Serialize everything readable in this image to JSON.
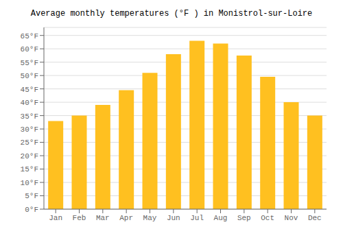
{
  "chart_data": {
    "type": "bar",
    "title": "Average monthly temperatures (°F ) in Monistrol-sur-Loire",
    "categories": [
      "Jan",
      "Feb",
      "Mar",
      "Apr",
      "May",
      "Jun",
      "Jul",
      "Aug",
      "Sep",
      "Oct",
      "Nov",
      "Dec"
    ],
    "values": [
      33,
      35,
      39,
      44.5,
      51,
      58,
      63,
      62,
      57.5,
      49.5,
      40,
      35
    ],
    "color": "#FFC020",
    "ylim": [
      0,
      68
    ],
    "yticks": [
      {
        "value": 0,
        "label": "0°F"
      },
      {
        "value": 5,
        "label": "5°F"
      },
      {
        "value": 10,
        "label": "10°F"
      },
      {
        "value": 15,
        "label": "15°F"
      },
      {
        "value": 20,
        "label": "20°F"
      },
      {
        "value": 25,
        "label": "25°F"
      },
      {
        "value": 30,
        "label": "30°F"
      },
      {
        "value": 35,
        "label": "35°F"
      },
      {
        "value": 40,
        "label": "40°F"
      },
      {
        "value": 45,
        "label": "45°F"
      },
      {
        "value": 50,
        "label": "50°F"
      },
      {
        "value": 55,
        "label": "55°F"
      },
      {
        "value": 60,
        "label": "60°F"
      },
      {
        "value": 65,
        "label": "65°F"
      }
    ],
    "grid": true
  }
}
